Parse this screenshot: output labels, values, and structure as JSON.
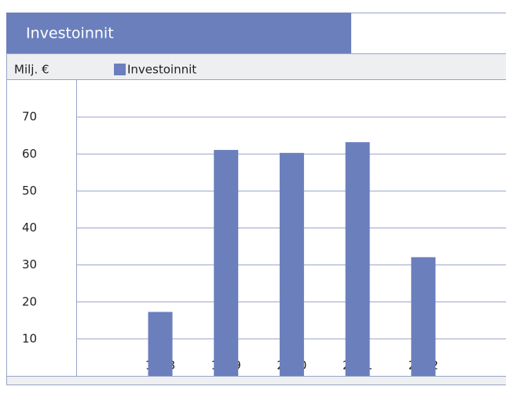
{
  "chart_data": {
    "type": "bar",
    "title": "Investoinnit",
    "y_label": "Milj. €",
    "categories": [
      "1998",
      "1999",
      "2000",
      "2001",
      "2002"
    ],
    "series": [
      {
        "name": "Investoinnit",
        "color": "#6b7fbd",
        "values": [
          17.3,
          61.1,
          60.3,
          63.2,
          32.1
        ]
      }
    ],
    "ylim": [
      0,
      80
    ],
    "yticks": [
      10,
      20,
      30,
      40,
      50,
      60,
      70
    ],
    "grid": true
  }
}
